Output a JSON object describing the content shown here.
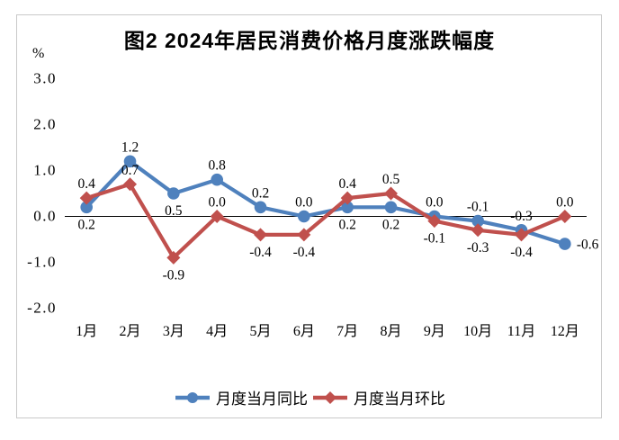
{
  "chart_data": {
    "type": "line",
    "title": "图2 2024年居民消费价格月度涨跌幅度",
    "ylabel": "%",
    "ylim": [
      -2.0,
      3.0
    ],
    "yticks": [
      3.0,
      2.0,
      1.0,
      0.0,
      -1.0,
      -2.0
    ],
    "grid": false,
    "legend_position": "bottom",
    "categories": [
      "1月",
      "2月",
      "3月",
      "4月",
      "5月",
      "6月",
      "7月",
      "8月",
      "9月",
      "10月",
      "11月",
      "12月"
    ],
    "series": [
      {
        "name": "月度当月同比",
        "color": "#4F81BD",
        "marker": "circle",
        "values": [
          0.2,
          1.2,
          0.5,
          0.8,
          0.2,
          0.0,
          0.2,
          0.2,
          0.0,
          -0.1,
          -0.3,
          -0.6
        ],
        "label_side": [
          "below",
          "above",
          "below",
          "above",
          "above",
          "above",
          "below",
          "below",
          "above",
          "above",
          "above",
          "right"
        ]
      },
      {
        "name": "月度当月环比",
        "color": "#C0504D",
        "marker": "diamond",
        "values": [
          0.4,
          0.7,
          -0.9,
          0.0,
          -0.4,
          -0.4,
          0.4,
          0.5,
          -0.1,
          -0.3,
          -0.4,
          0.0
        ],
        "label_side": [
          "above",
          "above",
          "below",
          "above",
          "below",
          "below",
          "above",
          "above",
          "below",
          "below",
          "below",
          "above"
        ]
      }
    ]
  }
}
